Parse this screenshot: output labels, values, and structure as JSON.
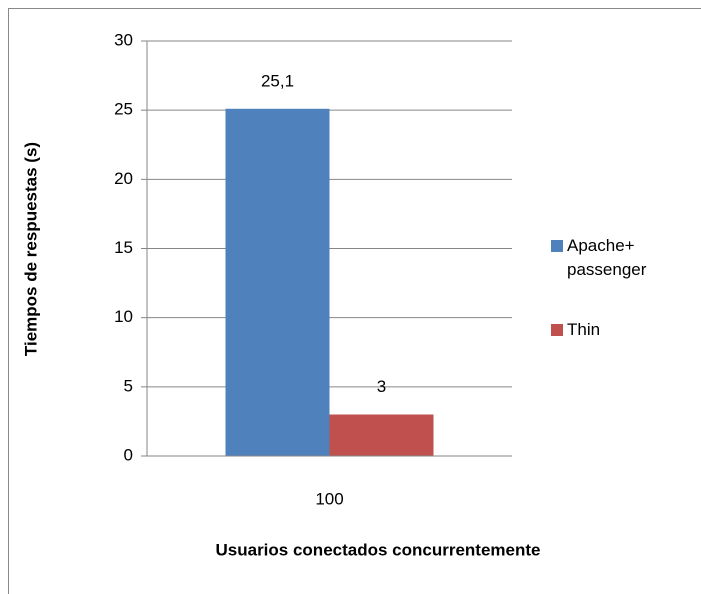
{
  "chart_data": {
    "type": "bar",
    "x_label": "Usuarios conectados concurrentemente",
    "y_label": "Tiempos de respuestas  (s)",
    "categories": [
      "100"
    ],
    "series": [
      {
        "name": "Apache+ passenger",
        "color": "#4f81bd",
        "values": [
          25.1
        ],
        "value_labels": [
          "25,1"
        ]
      },
      {
        "name": "Thin",
        "color": "#c0504d",
        "values": [
          3
        ],
        "value_labels": [
          "3"
        ]
      }
    ],
    "ylim": [
      0,
      30
    ],
    "yticks": [
      0,
      5,
      10,
      15,
      20,
      25,
      30
    ],
    "grid": true,
    "legend": "right"
  }
}
